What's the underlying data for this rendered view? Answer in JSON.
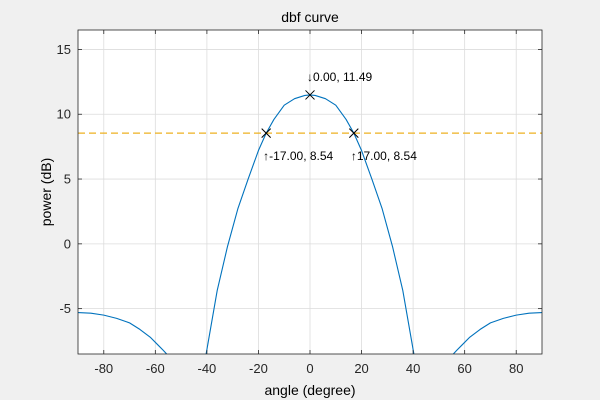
{
  "chart_data": {
    "type": "line",
    "title": "dbf curve",
    "xlabel": "angle (degree)",
    "ylabel": "power (dB)",
    "xlim": [
      -90,
      90
    ],
    "ylim": [
      -8.5,
      16.5
    ],
    "xticks": [
      -80,
      -60,
      -40,
      -20,
      0,
      20,
      40,
      60,
      80
    ],
    "yticks": [
      -5,
      0,
      5,
      10,
      15
    ],
    "xtick_labels": [
      "-80",
      "-60",
      "-40",
      "-20",
      "0",
      "20",
      "40",
      "60",
      "80"
    ],
    "ytick_labels": [
      "-5",
      "0",
      "5",
      "10",
      "15"
    ],
    "grid": true,
    "series": [
      {
        "color": "#0072bd",
        "segments": [
          {
            "x": [
              -90,
              -85,
              -80,
              -75,
              -70,
              -66,
              -62,
              -59,
              -57,
              -55.6
            ],
            "y": [
              -5.3,
              -5.35,
              -5.5,
              -5.75,
              -6.1,
              -6.6,
              -7.2,
              -7.8,
              -8.2,
              -8.5
            ]
          },
          {
            "x": [
              -40.3,
              -36,
              -32,
              -28,
              -24,
              -20,
              -17,
              -14,
              -10,
              -6,
              -2,
              0,
              2,
              6,
              10,
              14,
              17,
              20,
              24,
              28,
              32,
              36,
              40.3
            ],
            "y": [
              -8.5,
              -3.6,
              -0.2,
              2.7,
              5.0,
              7.2,
              8.54,
              9.6,
              10.7,
              11.2,
              11.45,
              11.49,
              11.45,
              11.2,
              10.7,
              9.6,
              8.54,
              7.2,
              5.0,
              2.7,
              -0.2,
              -3.6,
              -8.5
            ]
          },
          {
            "x": [
              55.6,
              57,
              59,
              62,
              66,
              70,
              75,
              80,
              85,
              90
            ],
            "y": [
              -8.5,
              -8.2,
              -7.8,
              -7.2,
              -6.6,
              -6.1,
              -5.75,
              -5.5,
              -5.35,
              -5.3
            ]
          }
        ]
      }
    ],
    "threshold": {
      "y": 8.54,
      "color": "#edb120",
      "style": "dashed"
    },
    "markers": [
      {
        "x": 0,
        "y": 11.49,
        "label": "↓0.00, 11.49",
        "label_pos": "above"
      },
      {
        "x": -17,
        "y": 8.54,
        "label": "↑-17.00, 8.54",
        "label_pos": "below"
      },
      {
        "x": 17,
        "y": 8.54,
        "label": "↑17.00, 8.54",
        "label_pos": "below"
      }
    ]
  }
}
